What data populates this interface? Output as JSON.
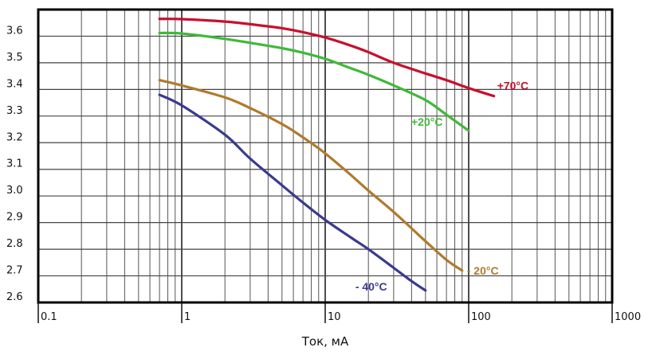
{
  "chart_data": {
    "type": "line",
    "xlabel": "Ток, мА",
    "ylabel": "",
    "xscale": "log",
    "xlim": [
      0.1,
      1000
    ],
    "ylim": [
      2.6,
      3.7
    ],
    "grid": true,
    "legend": "inline labels at line ends",
    "x_tick_labels": [
      "0.1",
      "1",
      "10",
      "100",
      "1000"
    ],
    "y_tick_labels": [
      "3.6",
      "3.5",
      "3.4",
      "3.3",
      "3.2",
      "3.1",
      "3.0",
      "2.9",
      "2.8",
      "2.7",
      "2.6"
    ],
    "y_ticks": [
      3.6,
      3.5,
      3.4,
      3.3,
      3.2,
      3.1,
      3.0,
      2.9,
      2.8,
      2.7,
      2.6
    ],
    "series": [
      {
        "name": "+70°C",
        "color": "#c8102e",
        "points": [
          [
            0.7,
            3.665
          ],
          [
            1,
            3.664
          ],
          [
            2,
            3.655
          ],
          [
            3,
            3.645
          ],
          [
            5,
            3.63
          ],
          [
            7,
            3.615
          ],
          [
            10,
            3.595
          ],
          [
            15,
            3.565
          ],
          [
            20,
            3.54
          ],
          [
            30,
            3.5
          ],
          [
            50,
            3.46
          ],
          [
            70,
            3.435
          ],
          [
            100,
            3.405
          ],
          [
            150,
            3.375
          ]
        ]
      },
      {
        "name": "+20°C",
        "color": "#3fb93a",
        "points": [
          [
            0.7,
            3.612
          ],
          [
            1,
            3.61
          ],
          [
            2,
            3.59
          ],
          [
            3,
            3.575
          ],
          [
            5,
            3.555
          ],
          [
            7,
            3.538
          ],
          [
            10,
            3.515
          ],
          [
            15,
            3.48
          ],
          [
            20,
            3.455
          ],
          [
            30,
            3.415
          ],
          [
            50,
            3.36
          ],
          [
            70,
            3.305
          ],
          [
            100,
            3.245
          ]
        ]
      },
      {
        "name": "- 20°C",
        "color": "#b07a2c",
        "points": [
          [
            0.7,
            3.435
          ],
          [
            1,
            3.415
          ],
          [
            2,
            3.37
          ],
          [
            3,
            3.33
          ],
          [
            5,
            3.27
          ],
          [
            7,
            3.22
          ],
          [
            10,
            3.16
          ],
          [
            15,
            3.08
          ],
          [
            20,
            3.02
          ],
          [
            30,
            2.94
          ],
          [
            50,
            2.83
          ],
          [
            70,
            2.76
          ],
          [
            90,
            2.72
          ]
        ]
      },
      {
        "name": "- 40°C",
        "color": "#3b3a8f",
        "points": [
          [
            0.7,
            3.38
          ],
          [
            1,
            3.34
          ],
          [
            2,
            3.23
          ],
          [
            3,
            3.14
          ],
          [
            5,
            3.04
          ],
          [
            7,
            2.975
          ],
          [
            10,
            2.91
          ],
          [
            15,
            2.845
          ],
          [
            20,
            2.8
          ],
          [
            30,
            2.73
          ],
          [
            40,
            2.68
          ],
          [
            50,
            2.645
          ]
        ]
      }
    ]
  }
}
